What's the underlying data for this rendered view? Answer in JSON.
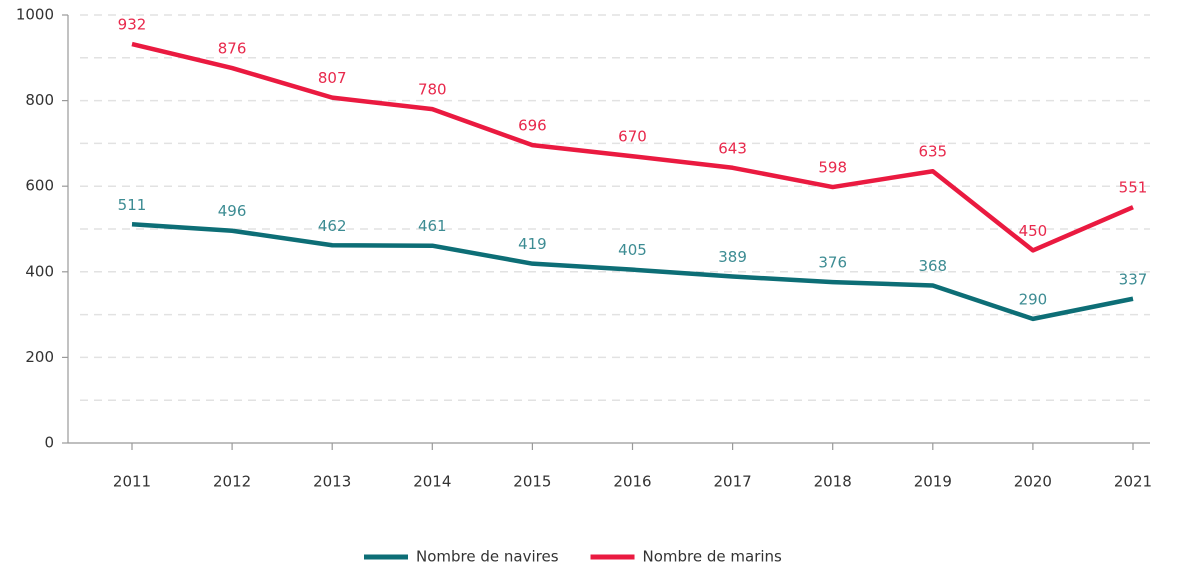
{
  "chart_data": {
    "type": "line",
    "categories": [
      "2011",
      "2012",
      "2013",
      "2014",
      "2015",
      "2016",
      "2017",
      "2018",
      "2019",
      "2020",
      "2021"
    ],
    "series": [
      {
        "name": "Nombre de navires",
        "color": "#0d6e76",
        "label_color": "#3d8c93",
        "values": [
          511,
          496,
          462,
          461,
          419,
          405,
          389,
          376,
          368,
          290,
          337
        ]
      },
      {
        "name": "Nombre de marins",
        "color": "#ea1a40",
        "label_color": "#e8294c",
        "values": [
          932,
          876,
          807,
          780,
          696,
          670,
          643,
          598,
          635,
          450,
          551
        ]
      }
    ],
    "ylim": [
      0,
      1000
    ],
    "yticks": [
      0,
      200,
      400,
      600,
      800,
      1000
    ],
    "minor_yticks": [
      100,
      300,
      500,
      700,
      900
    ],
    "grid": true,
    "legend": "bottom"
  }
}
